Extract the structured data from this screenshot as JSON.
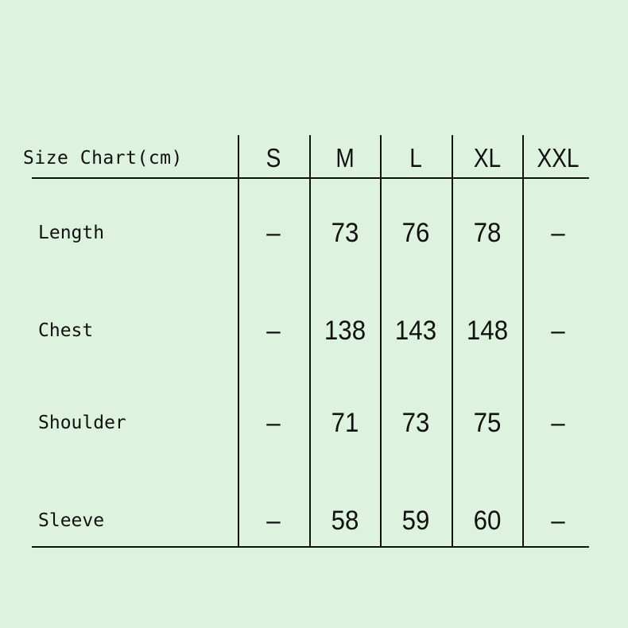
{
  "table": {
    "title": "Size Chart(cm)",
    "sizes": [
      "S",
      "M",
      "L",
      "XL",
      "XXL"
    ],
    "rows": [
      {
        "label": "Length",
        "values": [
          "–",
          "73",
          "76",
          "78",
          "–"
        ]
      },
      {
        "label": "Chest",
        "values": [
          "–",
          "138",
          "143",
          "148",
          "–"
        ]
      },
      {
        "label": "Shoulder",
        "values": [
          "–",
          "71",
          "73",
          "75",
          "–"
        ]
      },
      {
        "label": "Sleeve",
        "values": [
          "–",
          "58",
          "59",
          "60",
          "–"
        ]
      }
    ]
  },
  "colors": {
    "background": "#ddf2df",
    "lines": "#111111"
  }
}
